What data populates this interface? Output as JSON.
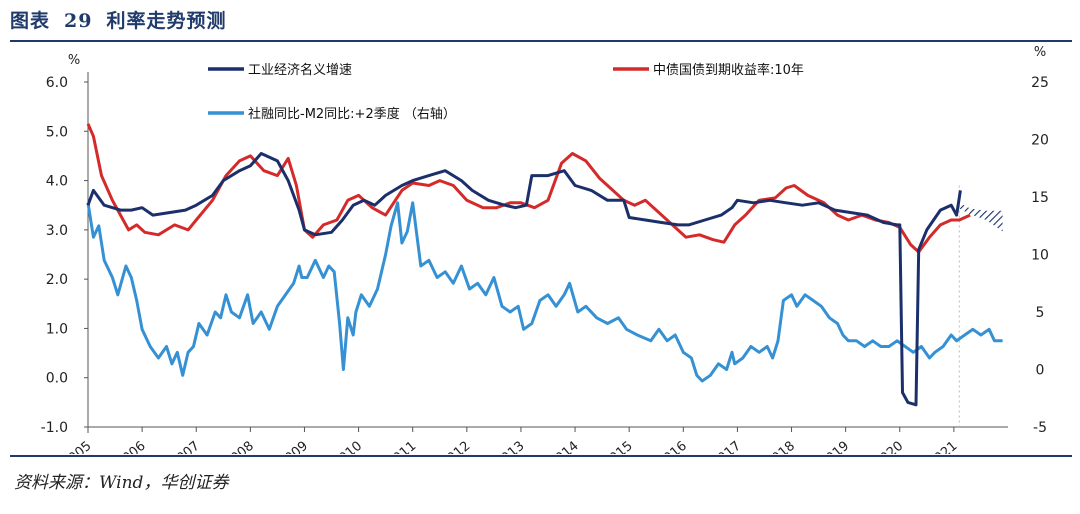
{
  "header": {
    "figure_label": "图表",
    "figure_number": "29",
    "figure_title": "利率走势预测"
  },
  "source": "资料来源：Wind，华创证券",
  "colors": {
    "gdp": "#1b2f6a",
    "yield": "#d42a2a",
    "credit": "#3591d4",
    "rule": "#1f3a6b"
  },
  "chart_data": {
    "type": "line",
    "title": "利率走势预测",
    "left_axis": {
      "unit": "%",
      "ylim": [
        -1.0,
        6.0
      ],
      "ticks": [
        "6.0",
        "5.0",
        "4.0",
        "3.0",
        "2.0",
        "1.0",
        "0.0",
        "-1.0"
      ]
    },
    "right_axis": {
      "unit": "%",
      "ylim": [
        -5,
        25
      ],
      "ticks": [
        "25",
        "20",
        "15",
        "10",
        "5",
        "0",
        "-5"
      ]
    },
    "x_range": [
      2005.0,
      2022.0
    ],
    "x_ticks": [
      "2005",
      "2006",
      "2007",
      "2008",
      "2009",
      "2010",
      "2011",
      "2012",
      "2013",
      "2014",
      "2015",
      "2016",
      "2017",
      "2018",
      "2019",
      "2020",
      "2021"
    ],
    "legend": [
      {
        "key": "gdp",
        "label": "工业经济名义增速"
      },
      {
        "key": "yield",
        "label": "中债国债到期收益率:10年"
      },
      {
        "key": "credit",
        "label": "社融同比-M2同比:+2季度 （右轴）"
      }
    ],
    "series": [
      {
        "name": "工业经济名义增速",
        "axis": "left",
        "points": [
          [
            2005.0,
            3.5
          ],
          [
            2005.1,
            3.8
          ],
          [
            2005.3,
            3.5
          ],
          [
            2005.6,
            3.4
          ],
          [
            2005.8,
            3.4
          ],
          [
            2006.0,
            3.45
          ],
          [
            2006.2,
            3.3
          ],
          [
            2006.5,
            3.35
          ],
          [
            2006.8,
            3.4
          ],
          [
            2007.0,
            3.5
          ],
          [
            2007.3,
            3.7
          ],
          [
            2007.5,
            4.0
          ],
          [
            2007.8,
            4.2
          ],
          [
            2008.0,
            4.3
          ],
          [
            2008.2,
            4.55
          ],
          [
            2008.5,
            4.4
          ],
          [
            2008.7,
            4.0
          ],
          [
            2008.9,
            3.4
          ],
          [
            2009.0,
            3.0
          ],
          [
            2009.2,
            2.9
          ],
          [
            2009.5,
            2.95
          ],
          [
            2009.7,
            3.2
          ],
          [
            2009.9,
            3.5
          ],
          [
            2010.1,
            3.6
          ],
          [
            2010.3,
            3.5
          ],
          [
            2010.5,
            3.7
          ],
          [
            2010.8,
            3.9
          ],
          [
            2011.0,
            4.0
          ],
          [
            2011.3,
            4.1
          ],
          [
            2011.6,
            4.2
          ],
          [
            2011.9,
            4.0
          ],
          [
            2012.1,
            3.8
          ],
          [
            2012.4,
            3.6
          ],
          [
            2012.7,
            3.5
          ],
          [
            2012.9,
            3.45
          ],
          [
            2013.1,
            3.5
          ],
          [
            2013.2,
            4.1
          ],
          [
            2013.5,
            4.1
          ],
          [
            2013.8,
            4.2
          ],
          [
            2014.0,
            3.9
          ],
          [
            2014.3,
            3.8
          ],
          [
            2014.6,
            3.6
          ],
          [
            2014.9,
            3.6
          ],
          [
            2015.0,
            3.25
          ],
          [
            2015.3,
            3.2
          ],
          [
            2015.6,
            3.15
          ],
          [
            2015.9,
            3.1
          ],
          [
            2016.1,
            3.1
          ],
          [
            2016.4,
            3.2
          ],
          [
            2016.7,
            3.3
          ],
          [
            2016.9,
            3.45
          ],
          [
            2017.0,
            3.6
          ],
          [
            2017.3,
            3.55
          ],
          [
            2017.6,
            3.6
          ],
          [
            2017.9,
            3.55
          ],
          [
            2018.2,
            3.5
          ],
          [
            2018.5,
            3.55
          ],
          [
            2018.8,
            3.4
          ],
          [
            2019.1,
            3.35
          ],
          [
            2019.4,
            3.3
          ],
          [
            2019.7,
            3.15
          ],
          [
            2019.95,
            3.1
          ],
          [
            2020.0,
            3.1
          ],
          [
            2020.05,
            -0.3
          ],
          [
            2020.15,
            -0.5
          ],
          [
            2020.3,
            -0.55
          ],
          [
            2020.35,
            2.6
          ],
          [
            2020.5,
            3.0
          ],
          [
            2020.75,
            3.4
          ],
          [
            2020.95,
            3.5
          ],
          [
            2021.05,
            3.3
          ],
          [
            2021.12,
            3.8
          ]
        ]
      },
      {
        "name": "中债国债到期收益率:10年",
        "axis": "left",
        "points": [
          [
            2005.0,
            5.15
          ],
          [
            2005.1,
            4.9
          ],
          [
            2005.25,
            4.1
          ],
          [
            2005.45,
            3.6
          ],
          [
            2005.6,
            3.3
          ],
          [
            2005.75,
            3.0
          ],
          [
            2005.9,
            3.1
          ],
          [
            2006.05,
            2.95
          ],
          [
            2006.3,
            2.9
          ],
          [
            2006.6,
            3.1
          ],
          [
            2006.85,
            3.0
          ],
          [
            2007.0,
            3.2
          ],
          [
            2007.3,
            3.6
          ],
          [
            2007.55,
            4.1
          ],
          [
            2007.8,
            4.4
          ],
          [
            2008.0,
            4.5
          ],
          [
            2008.25,
            4.2
          ],
          [
            2008.5,
            4.1
          ],
          [
            2008.7,
            4.45
          ],
          [
            2008.85,
            3.9
          ],
          [
            2009.0,
            3.0
          ],
          [
            2009.15,
            2.85
          ],
          [
            2009.35,
            3.1
          ],
          [
            2009.6,
            3.2
          ],
          [
            2009.8,
            3.6
          ],
          [
            2010.0,
            3.7
          ],
          [
            2010.25,
            3.45
          ],
          [
            2010.5,
            3.3
          ],
          [
            2010.8,
            3.8
          ],
          [
            2011.0,
            3.95
          ],
          [
            2011.3,
            3.9
          ],
          [
            2011.5,
            4.0
          ],
          [
            2011.75,
            3.9
          ],
          [
            2012.0,
            3.6
          ],
          [
            2012.3,
            3.45
          ],
          [
            2012.55,
            3.45
          ],
          [
            2012.8,
            3.55
          ],
          [
            2013.0,
            3.55
          ],
          [
            2013.25,
            3.45
          ],
          [
            2013.5,
            3.6
          ],
          [
            2013.75,
            4.35
          ],
          [
            2013.95,
            4.55
          ],
          [
            2014.2,
            4.4
          ],
          [
            2014.45,
            4.05
          ],
          [
            2014.7,
            3.8
          ],
          [
            2014.9,
            3.6
          ],
          [
            2015.1,
            3.5
          ],
          [
            2015.3,
            3.6
          ],
          [
            2015.5,
            3.4
          ],
          [
            2015.7,
            3.2
          ],
          [
            2015.9,
            3.0
          ],
          [
            2016.05,
            2.85
          ],
          [
            2016.3,
            2.9
          ],
          [
            2016.55,
            2.8
          ],
          [
            2016.75,
            2.75
          ],
          [
            2016.95,
            3.1
          ],
          [
            2017.15,
            3.3
          ],
          [
            2017.4,
            3.6
          ],
          [
            2017.7,
            3.65
          ],
          [
            2017.9,
            3.85
          ],
          [
            2018.05,
            3.9
          ],
          [
            2018.3,
            3.7
          ],
          [
            2018.6,
            3.55
          ],
          [
            2018.85,
            3.3
          ],
          [
            2019.05,
            3.2
          ],
          [
            2019.3,
            3.3
          ],
          [
            2019.55,
            3.2
          ],
          [
            2019.8,
            3.15
          ],
          [
            2020.0,
            3.05
          ],
          [
            2020.2,
            2.7
          ],
          [
            2020.35,
            2.55
          ],
          [
            2020.55,
            2.85
          ],
          [
            2020.75,
            3.1
          ],
          [
            2020.95,
            3.2
          ],
          [
            2021.1,
            3.2
          ],
          [
            2021.3,
            3.3
          ]
        ]
      },
      {
        "name": "社融同比-M2同比:+2季度 （右轴）",
        "axis": "right",
        "points": [
          [
            2005.0,
            14.5
          ],
          [
            2005.1,
            11.5
          ],
          [
            2005.2,
            12.5
          ],
          [
            2005.3,
            9.5
          ],
          [
            2005.45,
            8.0
          ],
          [
            2005.55,
            6.5
          ],
          [
            2005.7,
            9.0
          ],
          [
            2005.8,
            8.0
          ],
          [
            2005.9,
            6.0
          ],
          [
            2006.0,
            3.5
          ],
          [
            2006.15,
            2.0
          ],
          [
            2006.3,
            1.0
          ],
          [
            2006.45,
            2.0
          ],
          [
            2006.55,
            0.5
          ],
          [
            2006.65,
            1.5
          ],
          [
            2006.75,
            -0.5
          ],
          [
            2006.85,
            1.5
          ],
          [
            2006.95,
            2.0
          ],
          [
            2007.05,
            4.0
          ],
          [
            2007.2,
            3.0
          ],
          [
            2007.35,
            5.0
          ],
          [
            2007.45,
            4.5
          ],
          [
            2007.55,
            6.5
          ],
          [
            2007.65,
            5.0
          ],
          [
            2007.8,
            4.5
          ],
          [
            2007.95,
            6.5
          ],
          [
            2008.05,
            4.0
          ],
          [
            2008.2,
            5.0
          ],
          [
            2008.35,
            3.5
          ],
          [
            2008.5,
            5.5
          ],
          [
            2008.65,
            6.5
          ],
          [
            2008.8,
            7.5
          ],
          [
            2008.9,
            9.0
          ],
          [
            2008.95,
            8.0
          ],
          [
            2009.05,
            8.0
          ],
          [
            2009.2,
            9.5
          ],
          [
            2009.35,
            8.0
          ],
          [
            2009.45,
            9.0
          ],
          [
            2009.55,
            8.5
          ],
          [
            2009.65,
            4.0
          ],
          [
            2009.72,
            0.0
          ],
          [
            2009.8,
            4.5
          ],
          [
            2009.9,
            3.0
          ],
          [
            2009.95,
            5.0
          ],
          [
            2010.05,
            6.5
          ],
          [
            2010.2,
            5.5
          ],
          [
            2010.35,
            7.0
          ],
          [
            2010.5,
            10.0
          ],
          [
            2010.6,
            12.5
          ],
          [
            2010.72,
            14.5
          ],
          [
            2010.8,
            11.0
          ],
          [
            2010.9,
            12.0
          ],
          [
            2011.0,
            14.5
          ],
          [
            2011.15,
            9.0
          ],
          [
            2011.3,
            9.5
          ],
          [
            2011.45,
            8.0
          ],
          [
            2011.6,
            8.5
          ],
          [
            2011.75,
            7.5
          ],
          [
            2011.9,
            9.0
          ],
          [
            2012.05,
            7.0
          ],
          [
            2012.2,
            7.5
          ],
          [
            2012.35,
            6.5
          ],
          [
            2012.5,
            8.0
          ],
          [
            2012.65,
            5.5
          ],
          [
            2012.8,
            5.0
          ],
          [
            2012.95,
            5.5
          ],
          [
            2013.05,
            3.5
          ],
          [
            2013.2,
            4.0
          ],
          [
            2013.35,
            6.0
          ],
          [
            2013.5,
            6.5
          ],
          [
            2013.65,
            5.5
          ],
          [
            2013.8,
            6.5
          ],
          [
            2013.9,
            7.5
          ],
          [
            2014.05,
            5.0
          ],
          [
            2014.2,
            5.5
          ],
          [
            2014.4,
            4.5
          ],
          [
            2014.6,
            4.0
          ],
          [
            2014.8,
            4.5
          ],
          [
            2014.95,
            3.5
          ],
          [
            2015.15,
            3.0
          ],
          [
            2015.4,
            2.5
          ],
          [
            2015.55,
            3.5
          ],
          [
            2015.7,
            2.5
          ],
          [
            2015.85,
            3.0
          ],
          [
            2016.0,
            1.5
          ],
          [
            2016.15,
            1.0
          ],
          [
            2016.25,
            -0.5
          ],
          [
            2016.35,
            -1.0
          ],
          [
            2016.5,
            -0.5
          ],
          [
            2016.65,
            0.5
          ],
          [
            2016.8,
            0.0
          ],
          [
            2016.9,
            1.5
          ],
          [
            2016.95,
            0.5
          ],
          [
            2017.1,
            1.0
          ],
          [
            2017.25,
            2.0
          ],
          [
            2017.4,
            1.5
          ],
          [
            2017.55,
            2.0
          ],
          [
            2017.65,
            1.0
          ],
          [
            2017.75,
            2.5
          ],
          [
            2017.85,
            6.0
          ],
          [
            2018.0,
            6.5
          ],
          [
            2018.1,
            5.5
          ],
          [
            2018.25,
            6.5
          ],
          [
            2018.4,
            6.0
          ],
          [
            2018.55,
            5.5
          ],
          [
            2018.7,
            4.5
          ],
          [
            2018.85,
            4.0
          ],
          [
            2018.95,
            3.0
          ],
          [
            2019.05,
            2.5
          ],
          [
            2019.2,
            2.5
          ],
          [
            2019.35,
            2.0
          ],
          [
            2019.5,
            2.5
          ],
          [
            2019.65,
            2.0
          ],
          [
            2019.8,
            2.0
          ],
          [
            2019.95,
            2.5
          ],
          [
            2020.1,
            2.0
          ],
          [
            2020.25,
            1.5
          ],
          [
            2020.4,
            2.0
          ],
          [
            2020.55,
            1.0
          ],
          [
            2020.65,
            1.5
          ],
          [
            2020.8,
            2.0
          ],
          [
            2020.95,
            3.0
          ],
          [
            2021.05,
            2.5
          ],
          [
            2021.2,
            3.0
          ],
          [
            2021.35,
            3.5
          ],
          [
            2021.5,
            3.0
          ],
          [
            2021.65,
            3.5
          ],
          [
            2021.75,
            2.5
          ],
          [
            2021.9,
            2.5
          ]
        ]
      }
    ],
    "forecast_band": {
      "name": "预测区间",
      "upper": [
        [
          2021.1,
          14.5
        ],
        [
          2021.3,
          14.0
        ],
        [
          2021.6,
          13.8
        ],
        [
          2021.9,
          13.8
        ]
      ],
      "lower": [
        [
          2021.1,
          14.0
        ],
        [
          2021.3,
          13.5
        ],
        [
          2021.6,
          13.0
        ],
        [
          2021.9,
          12.0
        ]
      ]
    }
  }
}
